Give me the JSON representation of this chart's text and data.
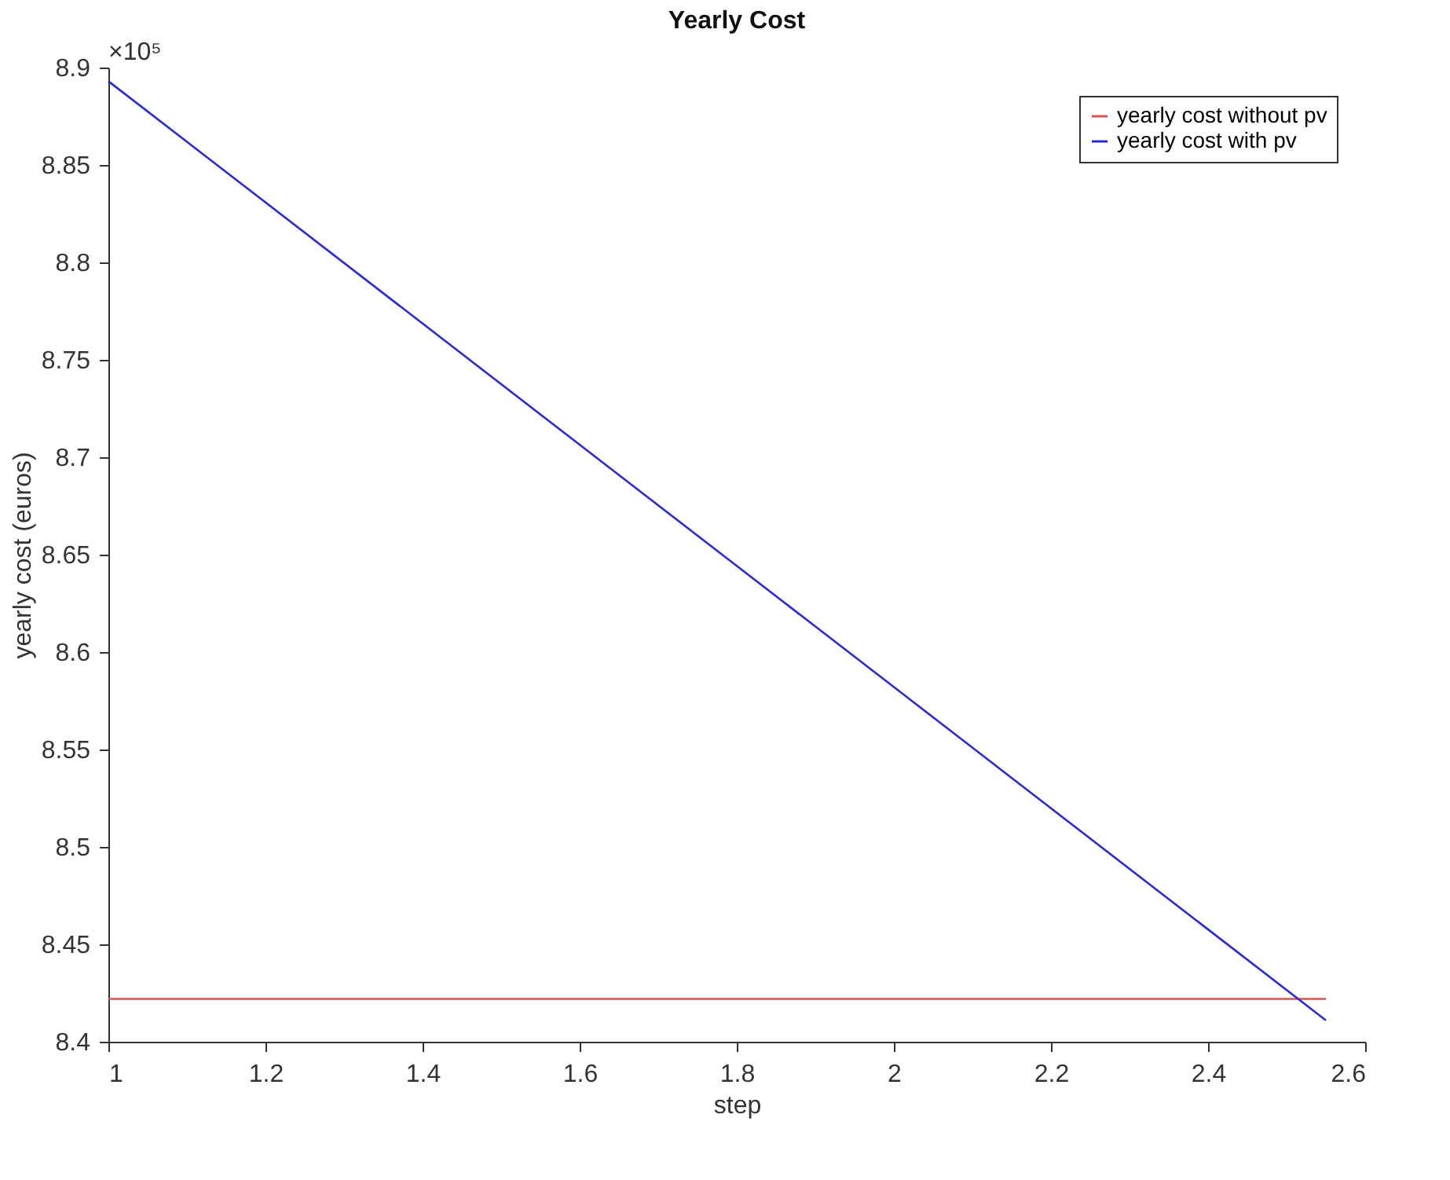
{
  "chart_data": {
    "type": "line",
    "title": "Yearly Cost",
    "xlabel": "step",
    "ylabel": "yearly cost (euros)",
    "annotations": [
      "×10⁵"
    ],
    "x": [
      1,
      2.55
    ],
    "series": [
      {
        "name": "yearly cost without pv",
        "color": "#d9534f",
        "values": [
          8.422,
          8.422
        ]
      },
      {
        "name": "yearly cost with pv",
        "color": "#2b2bd1",
        "values": [
          8.893,
          8.411
        ]
      }
    ],
    "xlim": [
      1,
      2.6
    ],
    "xticks": [
      1,
      1.2,
      1.4,
      1.6,
      1.8,
      2,
      2.2,
      2.4,
      2.6
    ],
    "ylim": [
      8.4,
      8.9
    ],
    "yticks": [
      8.4,
      8.45,
      8.5,
      8.55,
      8.6,
      8.65,
      8.7,
      8.75,
      8.8,
      8.85,
      8.9
    ],
    "grid": false,
    "legend": "top right",
    "line_style": "solid",
    "marker": "none"
  }
}
